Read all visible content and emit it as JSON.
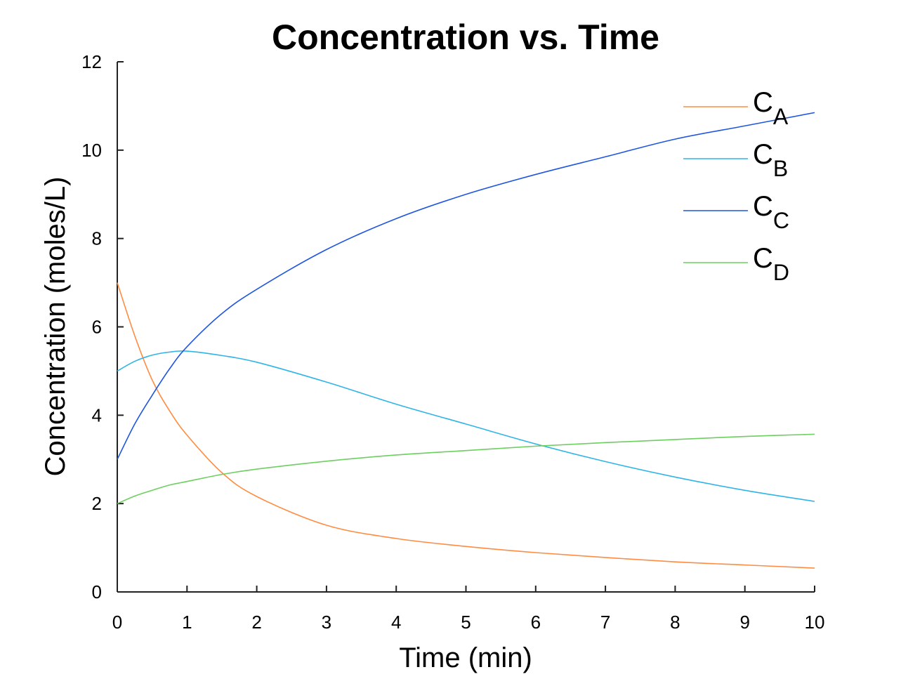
{
  "chart_data": {
    "type": "line",
    "title": "Concentration vs. Time",
    "xlabel": "Time (min)",
    "ylabel": "Concentration (moles/L)",
    "xlim": [
      0,
      10
    ],
    "ylim": [
      0,
      12
    ],
    "xticks": [
      "0",
      "1",
      "2",
      "3",
      "4",
      "5",
      "6",
      "7",
      "8",
      "9",
      "10"
    ],
    "yticks": [
      "0",
      "2",
      "4",
      "6",
      "8",
      "10",
      "12"
    ],
    "grid": false,
    "legend_position": "top-right",
    "x": [
      0,
      0.25,
      0.5,
      0.75,
      1,
      1.5,
      2,
      3,
      4,
      5,
      6,
      7,
      8,
      9,
      10
    ],
    "series": [
      {
        "name": "C",
        "sub": "A",
        "color": "#ff8c42",
        "values": [
          7.0,
          5.8,
          4.8,
          4.1,
          3.55,
          2.7,
          2.16,
          1.51,
          1.21,
          1.03,
          0.89,
          0.78,
          0.68,
          0.61,
          0.54
        ]
      },
      {
        "name": "C",
        "sub": "B",
        "color": "#2fb4e8",
        "values": [
          5.0,
          5.22,
          5.36,
          5.43,
          5.45,
          5.35,
          5.2,
          4.75,
          4.25,
          3.8,
          3.35,
          2.95,
          2.6,
          2.3,
          2.05
        ]
      },
      {
        "name": "C",
        "sub": "C",
        "color": "#1f56e0",
        "values": [
          3.0,
          3.8,
          4.45,
          5.05,
          5.55,
          6.3,
          6.85,
          7.75,
          8.45,
          9.0,
          9.45,
          9.85,
          10.25,
          10.55,
          10.85
        ]
      },
      {
        "name": "C",
        "sub": "D",
        "color": "#6ccf5f",
        "values": [
          2.0,
          2.17,
          2.3,
          2.42,
          2.5,
          2.66,
          2.78,
          2.96,
          3.1,
          3.2,
          3.3,
          3.38,
          3.45,
          3.52,
          3.57
        ]
      }
    ]
  }
}
